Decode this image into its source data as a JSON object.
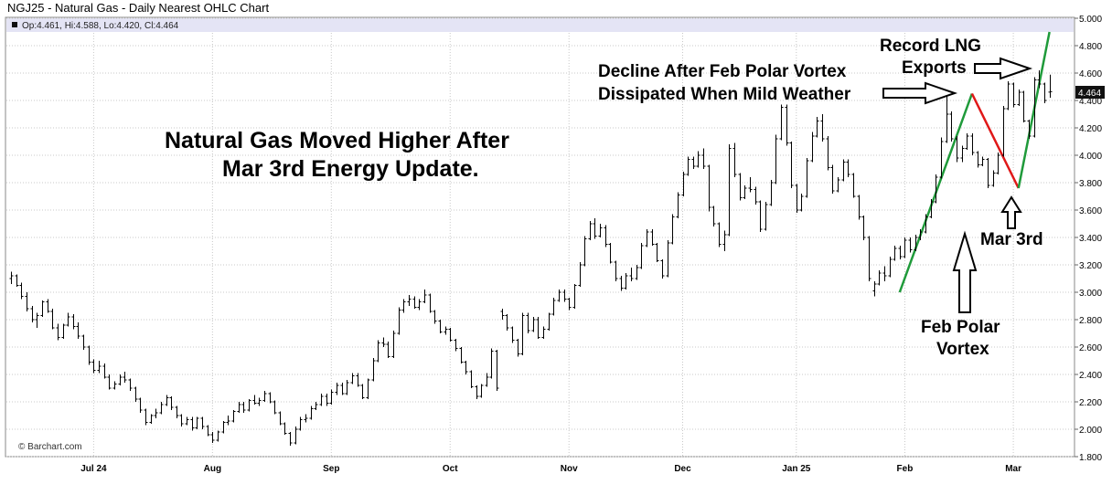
{
  "chart_data": {
    "type": "ohlc",
    "title": "NGJ25 - Natural Gas - Daily Nearest OHLC Chart",
    "info": "Op:4.461, Hi:4.588, Lo:4.420, Cl:4.464",
    "last_price": "4.464",
    "watermark": "© Barchart.com",
    "ylim": [
      1.8,
      5.0
    ],
    "y_ticks": [
      "1.800",
      "2.000",
      "2.200",
      "2.400",
      "2.600",
      "2.800",
      "3.000",
      "3.200",
      "3.400",
      "3.600",
      "3.800",
      "4.000",
      "4.200",
      "4.400",
      "4.600",
      "4.800",
      "5.000"
    ],
    "x_ticks": [
      "Jul 24",
      "Aug",
      "Sep",
      "Oct",
      "Nov",
      "Dec",
      "Jan 25",
      "Feb",
      "Mar"
    ],
    "x_tick_index": [
      16,
      39,
      62,
      85,
      108,
      130,
      152,
      173,
      194
    ],
    "x_count": 206,
    "bars": [
      [
        3.1,
        3.15,
        3.06,
        3.12
      ],
      [
        3.12,
        3.13,
        3.04,
        3.05
      ],
      [
        3.05,
        3.07,
        2.95,
        2.97
      ],
      [
        2.97,
        3.0,
        2.86,
        2.88
      ],
      [
        2.88,
        2.9,
        2.78,
        2.8
      ],
      [
        2.8,
        2.85,
        2.74,
        2.83
      ],
      [
        2.83,
        2.94,
        2.82,
        2.93
      ],
      [
        2.93,
        2.95,
        2.85,
        2.86
      ],
      [
        2.86,
        2.88,
        2.73,
        2.74
      ],
      [
        2.74,
        2.77,
        2.65,
        2.67
      ],
      [
        2.67,
        2.77,
        2.66,
        2.76
      ],
      [
        2.76,
        2.85,
        2.75,
        2.82
      ],
      [
        2.82,
        2.84,
        2.73,
        2.75
      ],
      [
        2.75,
        2.78,
        2.66,
        2.68
      ],
      [
        2.68,
        2.69,
        2.58,
        2.6
      ],
      [
        2.6,
        2.61,
        2.47,
        2.49
      ],
      [
        2.49,
        2.51,
        2.41,
        2.43
      ],
      [
        2.43,
        2.5,
        2.41,
        2.46
      ],
      [
        2.46,
        2.48,
        2.37,
        2.38
      ],
      [
        2.38,
        2.4,
        2.29,
        2.3
      ],
      [
        2.3,
        2.35,
        2.29,
        2.33
      ],
      [
        2.33,
        2.4,
        2.32,
        2.38
      ],
      [
        2.38,
        2.42,
        2.34,
        2.36
      ],
      [
        2.36,
        2.37,
        2.28,
        2.3
      ],
      [
        2.3,
        2.31,
        2.2,
        2.22
      ],
      [
        2.22,
        2.23,
        2.12,
        2.14
      ],
      [
        2.14,
        2.15,
        2.03,
        2.05
      ],
      [
        2.05,
        2.11,
        2.04,
        2.1
      ],
      [
        2.1,
        2.15,
        2.08,
        2.12
      ],
      [
        2.12,
        2.2,
        2.11,
        2.18
      ],
      [
        2.18,
        2.25,
        2.17,
        2.23
      ],
      [
        2.23,
        2.24,
        2.14,
        2.16
      ],
      [
        2.16,
        2.17,
        2.08,
        2.1
      ],
      [
        2.1,
        2.11,
        2.02,
        2.04
      ],
      [
        2.04,
        2.09,
        2.03,
        2.07
      ],
      [
        2.07,
        2.09,
        1.99,
        2.01
      ],
      [
        2.01,
        2.09,
        2.0,
        2.08
      ],
      [
        2.08,
        2.09,
        2.0,
        2.02
      ],
      [
        2.02,
        2.03,
        1.95,
        1.96
      ],
      [
        1.96,
        1.98,
        1.9,
        1.92
      ],
      [
        1.92,
        1.99,
        1.91,
        1.98
      ],
      [
        1.98,
        2.06,
        1.97,
        2.05
      ],
      [
        2.05,
        2.1,
        2.03,
        2.06
      ],
      [
        2.06,
        2.14,
        2.05,
        2.13
      ],
      [
        2.13,
        2.2,
        2.12,
        2.18
      ],
      [
        2.18,
        2.2,
        2.12,
        2.14
      ],
      [
        2.14,
        2.22,
        2.13,
        2.21
      ],
      [
        2.21,
        2.25,
        2.18,
        2.19
      ],
      [
        2.19,
        2.23,
        2.17,
        2.21
      ],
      [
        2.21,
        2.28,
        2.2,
        2.26
      ],
      [
        2.26,
        2.27,
        2.19,
        2.2
      ],
      [
        2.2,
        2.21,
        2.11,
        2.12
      ],
      [
        2.12,
        2.13,
        2.03,
        2.04
      ],
      [
        2.04,
        2.05,
        1.96,
        1.97
      ],
      [
        1.97,
        1.98,
        1.88,
        1.9
      ],
      [
        1.9,
        2.02,
        1.89,
        2.0
      ],
      [
        2.0,
        2.09,
        1.99,
        2.07
      ],
      [
        2.07,
        2.11,
        2.05,
        2.08
      ],
      [
        2.08,
        2.17,
        2.07,
        2.15
      ],
      [
        2.15,
        2.2,
        2.14,
        2.18
      ],
      [
        2.18,
        2.26,
        2.17,
        2.24
      ],
      [
        2.24,
        2.26,
        2.17,
        2.19
      ],
      [
        2.19,
        2.29,
        2.18,
        2.27
      ],
      [
        2.27,
        2.34,
        2.25,
        2.32
      ],
      [
        2.32,
        2.34,
        2.25,
        2.26
      ],
      [
        2.26,
        2.36,
        2.25,
        2.34
      ],
      [
        2.34,
        2.41,
        2.33,
        2.39
      ],
      [
        2.39,
        2.41,
        2.31,
        2.32
      ],
      [
        2.32,
        2.33,
        2.22,
        2.23
      ],
      [
        2.23,
        2.37,
        2.22,
        2.36
      ],
      [
        2.36,
        2.52,
        2.35,
        2.5
      ],
      [
        2.5,
        2.65,
        2.49,
        2.63
      ],
      [
        2.63,
        2.67,
        2.6,
        2.62
      ],
      [
        2.62,
        2.64,
        2.52,
        2.53
      ],
      [
        2.53,
        2.72,
        2.52,
        2.7
      ],
      [
        2.7,
        2.89,
        2.69,
        2.87
      ],
      [
        2.87,
        2.95,
        2.85,
        2.93
      ],
      [
        2.93,
        2.98,
        2.9,
        2.95
      ],
      [
        2.95,
        2.97,
        2.88,
        2.89
      ],
      [
        2.89,
        2.95,
        2.87,
        2.93
      ],
      [
        2.93,
        3.02,
        2.92,
        2.98
      ],
      [
        2.98,
        2.99,
        2.85,
        2.86
      ],
      [
        2.86,
        2.87,
        2.77,
        2.79
      ],
      [
        2.79,
        2.8,
        2.7,
        2.71
      ],
      [
        2.71,
        2.75,
        2.69,
        2.73
      ],
      [
        2.73,
        2.74,
        2.64,
        2.65
      ],
      [
        2.65,
        2.66,
        2.57,
        2.59
      ],
      [
        2.59,
        2.6,
        2.48,
        2.49
      ],
      [
        2.49,
        2.5,
        2.4,
        2.42
      ],
      [
        2.42,
        2.43,
        2.3,
        2.31
      ],
      [
        2.31,
        2.32,
        2.22,
        2.24
      ],
      [
        2.24,
        2.33,
        2.23,
        2.32
      ],
      [
        2.32,
        2.41,
        2.31,
        2.38
      ],
      [
        2.38,
        2.59,
        2.37,
        2.57
      ],
      [
        2.57,
        2.58,
        2.28,
        2.3
      ],
      [
        2.86,
        2.88,
        2.8,
        2.83
      ],
      [
        2.83,
        2.84,
        2.72,
        2.74
      ],
      [
        2.74,
        2.75,
        2.63,
        2.65
      ],
      [
        2.65,
        2.66,
        2.53,
        2.55
      ],
      [
        2.55,
        2.85,
        2.54,
        2.83
      ],
      [
        2.83,
        2.85,
        2.7,
        2.72
      ],
      [
        2.72,
        2.82,
        2.71,
        2.8
      ],
      [
        2.8,
        2.82,
        2.66,
        2.67
      ],
      [
        2.67,
        2.75,
        2.66,
        2.73
      ],
      [
        2.73,
        2.85,
        2.72,
        2.84
      ],
      [
        2.84,
        2.96,
        2.83,
        2.94
      ],
      [
        2.94,
        3.02,
        2.93,
        3.0
      ],
      [
        3.0,
        3.02,
        2.93,
        2.95
      ],
      [
        2.95,
        2.96,
        2.87,
        2.89
      ],
      [
        2.89,
        3.06,
        2.88,
        3.05
      ],
      [
        3.05,
        3.22,
        3.04,
        3.2
      ],
      [
        3.2,
        3.41,
        3.19,
        3.39
      ],
      [
        3.39,
        3.52,
        3.38,
        3.5
      ],
      [
        3.5,
        3.54,
        3.39,
        3.41
      ],
      [
        3.41,
        3.5,
        3.4,
        3.47
      ],
      [
        3.47,
        3.49,
        3.33,
        3.35
      ],
      [
        3.35,
        3.36,
        3.21,
        3.22
      ],
      [
        3.22,
        3.23,
        3.08,
        3.1
      ],
      [
        3.1,
        3.12,
        3.01,
        3.03
      ],
      [
        3.03,
        3.14,
        3.02,
        3.12
      ],
      [
        3.12,
        3.18,
        3.08,
        3.1
      ],
      [
        3.1,
        3.2,
        3.09,
        3.18
      ],
      [
        3.18,
        3.36,
        3.17,
        3.34
      ],
      [
        3.34,
        3.46,
        3.33,
        3.44
      ],
      [
        3.44,
        3.46,
        3.34,
        3.35
      ],
      [
        3.35,
        3.36,
        3.22,
        3.23
      ],
      [
        3.23,
        3.24,
        3.1,
        3.12
      ],
      [
        3.12,
        3.38,
        3.11,
        3.36
      ],
      [
        3.36,
        3.57,
        3.35,
        3.55
      ],
      [
        3.55,
        3.73,
        3.54,
        3.71
      ],
      [
        3.71,
        3.88,
        3.7,
        3.86
      ],
      [
        3.86,
        3.99,
        3.85,
        3.97
      ],
      [
        3.97,
        3.99,
        3.9,
        3.92
      ],
      [
        3.92,
        4.03,
        3.91,
        4.0
      ],
      [
        4.0,
        4.05,
        3.9,
        3.92
      ],
      [
        3.92,
        3.93,
        3.59,
        3.62
      ],
      [
        3.62,
        3.63,
        3.48,
        3.5
      ],
      [
        3.5,
        3.51,
        3.33,
        3.35
      ],
      [
        3.35,
        3.45,
        3.3,
        3.42
      ],
      [
        3.42,
        4.08,
        3.41,
        4.05
      ],
      [
        4.05,
        4.09,
        3.84,
        3.86
      ],
      [
        3.86,
        3.87,
        3.67,
        3.69
      ],
      [
        3.69,
        3.78,
        3.68,
        3.76
      ],
      [
        3.76,
        3.84,
        3.73,
        3.75
      ],
      [
        3.75,
        3.77,
        3.64,
        3.66
      ],
      [
        3.66,
        3.67,
        3.44,
        3.46
      ],
      [
        3.46,
        3.66,
        3.45,
        3.64
      ],
      [
        3.64,
        3.82,
        3.63,
        3.8
      ],
      [
        3.8,
        4.15,
        3.79,
        4.12
      ],
      [
        4.12,
        4.37,
        4.11,
        4.35
      ],
      [
        4.35,
        4.37,
        4.07,
        4.09
      ],
      [
        4.09,
        4.1,
        3.76,
        3.78
      ],
      [
        3.78,
        3.79,
        3.58,
        3.6
      ],
      [
        3.6,
        3.72,
        3.59,
        3.7
      ],
      [
        3.7,
        3.98,
        3.69,
        3.96
      ],
      [
        3.96,
        4.17,
        3.95,
        4.14
      ],
      [
        4.14,
        4.28,
        4.13,
        4.25
      ],
      [
        4.25,
        4.3,
        4.1,
        4.12
      ],
      [
        4.12,
        4.14,
        3.89,
        3.91
      ],
      [
        3.91,
        3.93,
        3.72,
        3.74
      ],
      [
        3.74,
        3.84,
        3.73,
        3.82
      ],
      [
        3.82,
        3.97,
        3.81,
        3.95
      ],
      [
        3.95,
        3.97,
        3.84,
        3.86
      ],
      [
        3.86,
        3.87,
        3.69,
        3.7
      ],
      [
        3.7,
        3.71,
        3.53,
        3.55
      ],
      [
        3.55,
        3.56,
        3.38,
        3.4
      ],
      [
        3.4,
        3.41,
        3.08,
        3.1
      ],
      [
        3.01,
        3.08,
        2.97,
        3.06
      ],
      [
        3.06,
        3.16,
        3.05,
        3.14
      ],
      [
        3.14,
        3.19,
        3.08,
        3.12
      ],
      [
        3.12,
        3.26,
        3.11,
        3.24
      ],
      [
        3.24,
        3.34,
        3.23,
        3.32
      ],
      [
        3.32,
        3.34,
        3.24,
        3.26
      ],
      [
        3.26,
        3.4,
        3.25,
        3.38
      ],
      [
        3.38,
        3.4,
        3.29,
        3.31
      ],
      [
        3.31,
        3.42,
        3.3,
        3.4
      ],
      [
        3.4,
        3.46,
        3.38,
        3.44
      ],
      [
        3.44,
        3.57,
        3.43,
        3.55
      ],
      [
        3.55,
        3.68,
        3.54,
        3.66
      ],
      [
        3.66,
        3.86,
        3.65,
        3.84
      ],
      [
        3.84,
        4.13,
        3.83,
        4.1
      ],
      [
        4.1,
        4.45,
        4.09,
        4.3
      ],
      [
        4.3,
        4.32,
        4.1,
        4.12
      ],
      [
        4.12,
        4.14,
        3.95,
        3.98
      ],
      [
        3.98,
        4.07,
        3.95,
        4.05
      ],
      [
        4.05,
        4.16,
        4.04,
        4.14
      ],
      [
        4.14,
        4.16,
        4.0,
        4.02
      ],
      [
        4.02,
        4.03,
        3.91,
        3.93
      ],
      [
        3.93,
        3.99,
        3.92,
        3.97
      ],
      [
        3.97,
        3.98,
        3.76,
        3.78
      ],
      [
        3.78,
        3.89,
        3.77,
        3.87
      ],
      [
        3.87,
        4.02,
        3.86,
        4.0
      ],
      [
        4.0,
        4.36,
        3.99,
        4.34
      ],
      [
        4.34,
        4.54,
        4.33,
        4.52
      ],
      [
        4.52,
        4.53,
        4.35,
        4.37
      ],
      [
        4.37,
        4.48,
        4.36,
        4.46
      ],
      [
        4.46,
        4.47,
        4.24,
        4.25
      ],
      [
        4.25,
        4.26,
        4.12,
        4.14
      ],
      [
        4.14,
        4.57,
        4.13,
        4.55
      ],
      [
        4.55,
        4.62,
        4.49,
        4.52
      ],
      [
        4.52,
        4.53,
        4.38,
        4.4
      ],
      [
        4.461,
        4.588,
        4.42,
        4.464
      ]
    ],
    "trendlines": [
      {
        "color": "#1f9a3a",
        "points": [
          [
            172,
            3.0
          ],
          [
            186,
            4.45
          ]
        ]
      },
      {
        "color": "#e01818",
        "points": [
          [
            186,
            4.45
          ],
          [
            195,
            3.76
          ]
        ]
      },
      {
        "color": "#1f9a3a",
        "points": [
          [
            195,
            3.76
          ],
          [
            201,
            4.9
          ]
        ]
      }
    ],
    "annotations": [
      {
        "lines": [
          "Natural Gas Moved Higher After",
          "Mar 3rd Energy Update."
        ],
        "style": "big"
      },
      {
        "lines": [
          "Decline After Feb Polar Vortex",
          "Dissipated When Mild Weather"
        ],
        "style": "normal"
      },
      {
        "lines": [
          "Record LNG",
          "Exports"
        ],
        "style": "normal"
      },
      {
        "lines": [
          "Mar 3rd"
        ],
        "style": "normal"
      },
      {
        "lines": [
          "Feb Polar",
          "Vortex"
        ],
        "style": "normal"
      }
    ]
  }
}
